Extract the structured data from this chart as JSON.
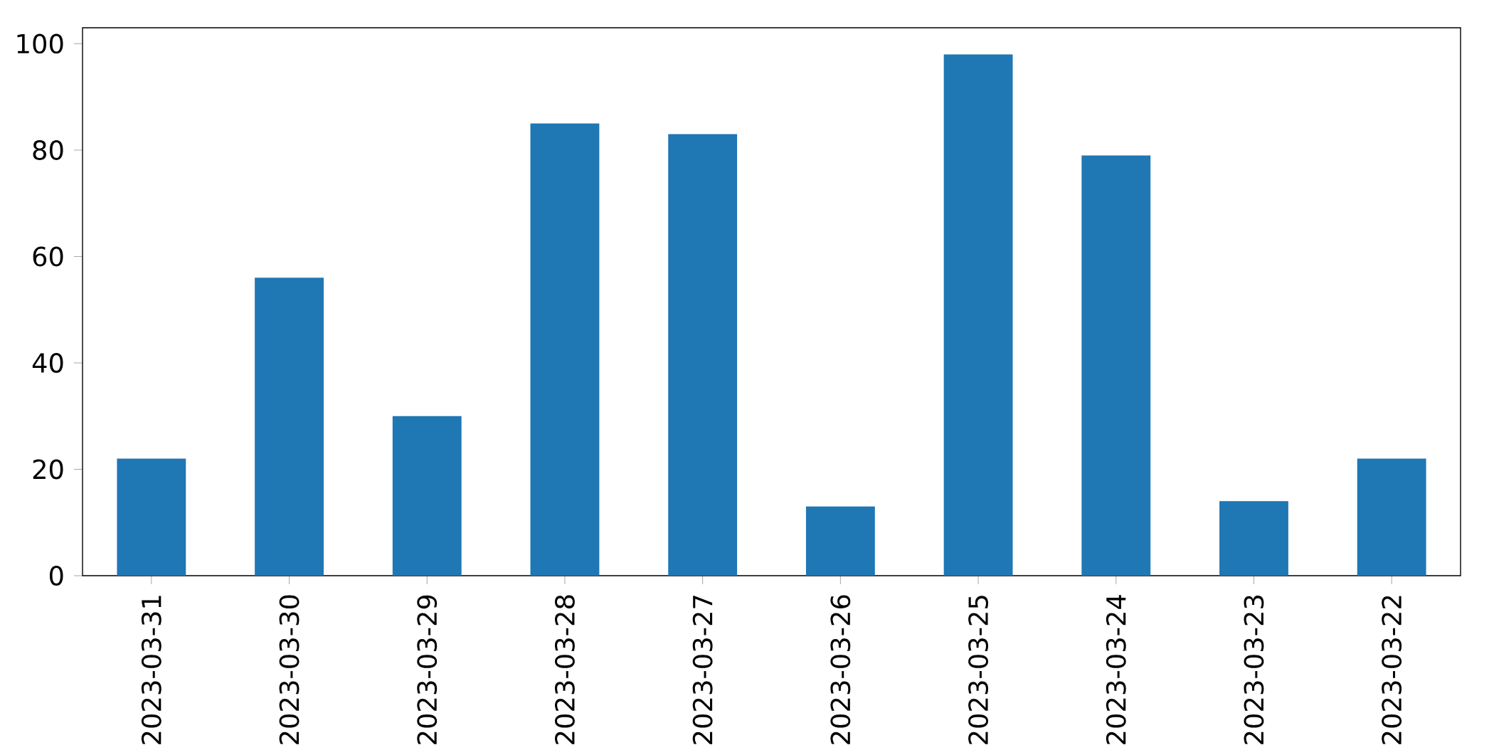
{
  "chart_data": {
    "type": "bar",
    "categories": [
      "2023-03-31",
      "2023-03-30",
      "2023-03-29",
      "2023-03-28",
      "2023-03-27",
      "2023-03-26",
      "2023-03-25",
      "2023-03-24",
      "2023-03-23",
      "2023-03-22"
    ],
    "values": [
      22,
      56,
      30,
      85,
      83,
      13,
      98,
      79,
      14,
      22
    ],
    "color": "#1f77b4",
    "ylim": [
      0,
      103
    ],
    "yticks": [
      0,
      20,
      40,
      60,
      80,
      100
    ]
  }
}
